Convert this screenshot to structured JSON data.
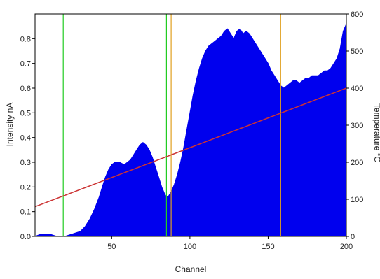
{
  "chart_data": {
    "type": "area",
    "xlabel": "Channel",
    "ylabel": "Intensity nA",
    "y2label": "Temperature °C",
    "xlim": [
      1,
      200
    ],
    "ylim": [
      0,
      0.9
    ],
    "y2lim": [
      0,
      600
    ],
    "x_ticks": [
      50,
      100,
      150,
      200
    ],
    "y_ticks": [
      0.0,
      0.1,
      0.2,
      0.3,
      0.4,
      0.5,
      0.6,
      0.7,
      0.8
    ],
    "y2_ticks": [
      0,
      100,
      200,
      300,
      400,
      500,
      600
    ],
    "grid": false,
    "series": [
      {
        "axis": "left",
        "type": "area",
        "color": "#0000ee",
        "x": [
          1,
          5,
          10,
          15,
          20,
          25,
          30,
          33,
          36,
          39,
          42,
          44,
          46,
          48,
          50,
          52,
          55,
          58,
          60,
          62,
          64,
          66,
          68,
          70,
          72,
          74,
          76,
          78,
          80,
          82,
          84,
          85,
          86,
          87,
          88,
          90,
          92,
          94,
          96,
          98,
          100,
          102,
          104,
          106,
          108,
          110,
          112,
          114,
          116,
          118,
          120,
          122,
          124,
          126,
          128,
          130,
          132,
          134,
          136,
          138,
          140,
          142,
          144,
          146,
          148,
          150,
          152,
          154,
          156,
          158,
          160,
          162,
          164,
          166,
          168,
          170,
          172,
          174,
          176,
          178,
          180,
          182,
          184,
          186,
          188,
          190,
          192,
          194,
          196,
          198,
          200
        ],
        "values": [
          0.0,
          0.01,
          0.01,
          0.0,
          0.0,
          0.01,
          0.02,
          0.04,
          0.07,
          0.11,
          0.16,
          0.2,
          0.24,
          0.27,
          0.29,
          0.3,
          0.3,
          0.29,
          0.3,
          0.31,
          0.33,
          0.35,
          0.37,
          0.38,
          0.37,
          0.35,
          0.32,
          0.28,
          0.24,
          0.2,
          0.17,
          0.16,
          0.16,
          0.17,
          0.18,
          0.21,
          0.25,
          0.3,
          0.36,
          0.43,
          0.5,
          0.57,
          0.63,
          0.68,
          0.72,
          0.75,
          0.77,
          0.78,
          0.79,
          0.8,
          0.81,
          0.83,
          0.84,
          0.82,
          0.8,
          0.83,
          0.84,
          0.82,
          0.83,
          0.82,
          0.8,
          0.78,
          0.76,
          0.74,
          0.72,
          0.7,
          0.67,
          0.65,
          0.63,
          0.61,
          0.6,
          0.61,
          0.62,
          0.63,
          0.63,
          0.62,
          0.63,
          0.64,
          0.64,
          0.65,
          0.65,
          0.65,
          0.66,
          0.67,
          0.67,
          0.68,
          0.7,
          0.72,
          0.76,
          0.83,
          0.86
        ]
      },
      {
        "axis": "right",
        "type": "line",
        "color": "#cc3333",
        "x": [
          1,
          200
        ],
        "values": [
          80,
          400
        ]
      }
    ],
    "markers": [
      {
        "x": 19,
        "color": "#22cc22"
      },
      {
        "x": 85,
        "color": "#22cc22"
      },
      {
        "x": 88,
        "color": "#e0a020"
      },
      {
        "x": 158,
        "color": "#e0a020"
      }
    ]
  }
}
